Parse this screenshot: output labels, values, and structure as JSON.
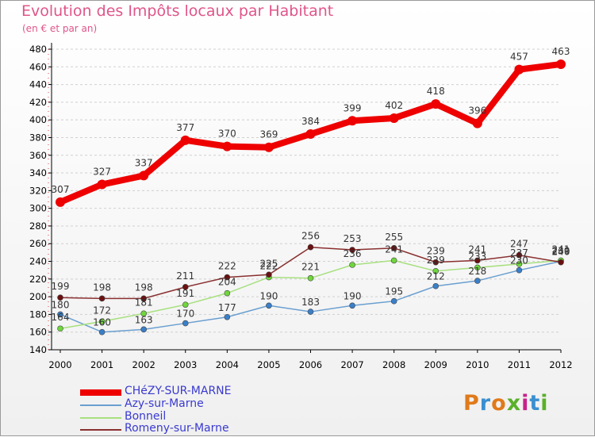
{
  "title": "Evolution des Impôts locaux par Habitant",
  "subtitle": "(en € et par an)",
  "logo_text": "Proxiti",
  "colors": {
    "title": "#e0558a",
    "axis": "#000000",
    "grid": "#d0d0d0",
    "label": "#333333"
  },
  "chart_data": {
    "type": "line",
    "categories": [
      "2000",
      "2001",
      "2002",
      "2003",
      "2004",
      "2005",
      "2006",
      "2007",
      "2008",
      "2009",
      "2010",
      "2011",
      "2012"
    ],
    "ylim": [
      140,
      480
    ],
    "yticks": [
      140,
      160,
      180,
      200,
      220,
      240,
      260,
      280,
      300,
      320,
      340,
      360,
      380,
      400,
      420,
      440,
      460,
      480
    ],
    "grid": true,
    "legend_position": "bottom-left",
    "series": [
      {
        "name": "CHéZY-SUR-MARNE",
        "color": "#ee0000",
        "marker": "#ee0000",
        "width": 8,
        "radius": 6,
        "values": [
          307,
          327,
          337,
          377,
          370,
          369,
          384,
          399,
          402,
          418,
          396,
          457,
          463
        ]
      },
      {
        "name": "Azy-sur-Marne",
        "color": "#6a9fd0",
        "marker": "#3a7fc8",
        "width": 1.5,
        "radius": 3.5,
        "values": [
          180,
          160,
          163,
          170,
          177,
          190,
          183,
          190,
          195,
          212,
          218,
          230,
          240
        ]
      },
      {
        "name": "Bonneil",
        "color": "#a8e080",
        "marker": "#6fd63c",
        "width": 1.5,
        "radius": 3.5,
        "values": [
          164,
          172,
          181,
          191,
          204,
          222,
          221,
          236,
          241,
          229,
          233,
          237,
          241
        ]
      },
      {
        "name": "Romeny-sur-Marne",
        "color": "#8a3030",
        "marker": "#6a1010",
        "width": 1.5,
        "radius": 3.5,
        "values": [
          199,
          198,
          198,
          211,
          222,
          225,
          256,
          253,
          255,
          239,
          241,
          247,
          239
        ]
      }
    ]
  }
}
